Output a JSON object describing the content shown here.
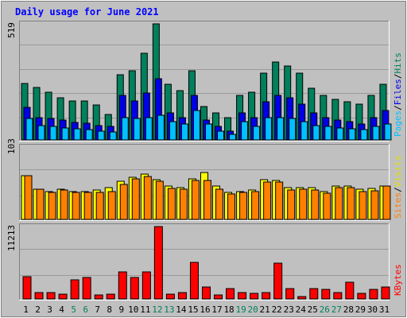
{
  "chart_data": [
    {
      "type": "bar",
      "title": "Daily usage for June 2021",
      "categories": [
        "1",
        "2",
        "3",
        "4",
        "5",
        "6",
        "7",
        "8",
        "9",
        "10",
        "11",
        "12",
        "13",
        "14",
        "15",
        "16",
        "17",
        "18",
        "19",
        "20",
        "21",
        "22",
        "23",
        "24",
        "25",
        "26",
        "27",
        "28",
        "29",
        "30",
        "31"
      ],
      "weekend_days": [
        "5",
        "6",
        "12",
        "13",
        "19",
        "20",
        "26",
        "27"
      ],
      "y_max_label": "519",
      "ylim": [
        0,
        519
      ],
      "grid": true,
      "series": [
        {
          "name": "Hits",
          "color": "#00805C",
          "values": [
            252,
            233,
            214,
            189,
            173,
            173,
            155,
            115,
            292,
            310,
            388,
            519,
            250,
            220,
            310,
            150,
            120,
            100,
            200,
            215,
            300,
            350,
            330,
            300,
            230,
            200,
            180,
            170,
            160,
            200,
            250
          ]
        },
        {
          "name": "Files",
          "color": "#0000E6",
          "values": [
            145,
            100,
            95,
            90,
            77,
            75,
            65,
            60,
            200,
            175,
            210,
            275,
            120,
            100,
            200,
            90,
            60,
            40,
            120,
            100,
            170,
            200,
            190,
            160,
            120,
            100,
            90,
            80,
            70,
            100,
            130
          ]
        },
        {
          "name": "Pages",
          "color": "#00C0FF",
          "values": [
            95,
            65,
            60,
            55,
            48,
            45,
            40,
            35,
            100,
            95,
            100,
            110,
            80,
            70,
            130,
            70,
            40,
            25,
            80,
            60,
            100,
            100,
            95,
            80,
            65,
            60,
            55,
            50,
            45,
            60,
            70
          ]
        }
      ]
    },
    {
      "type": "bar",
      "categories": [
        "1",
        "2",
        "3",
        "4",
        "5",
        "6",
        "7",
        "8",
        "9",
        "10",
        "11",
        "12",
        "13",
        "14",
        "15",
        "16",
        "17",
        "18",
        "19",
        "20",
        "21",
        "22",
        "23",
        "24",
        "25",
        "26",
        "27",
        "28",
        "29",
        "30",
        "31"
      ],
      "y_max_label": "103",
      "ylim": [
        0,
        103
      ],
      "grid": true,
      "series": [
        {
          "name": "Visits",
          "color": "#FFFF00",
          "values": [
            62,
            43,
            40,
            43,
            40,
            40,
            42,
            45,
            54,
            60,
            65,
            57,
            47,
            45,
            58,
            67,
            48,
            38,
            40,
            42,
            57,
            55,
            45,
            45,
            45,
            40,
            48,
            47,
            43,
            44,
            47
          ]
        },
        {
          "name": "Sites",
          "color": "#FF8000",
          "values": [
            62,
            43,
            39,
            42,
            38,
            38,
            39,
            40,
            50,
            58,
            61,
            54,
            44,
            43,
            56,
            56,
            43,
            36,
            38,
            40,
            53,
            53,
            42,
            43,
            42,
            37,
            45,
            45,
            40,
            41,
            47
          ]
        }
      ]
    },
    {
      "type": "bar",
      "categories": [
        "1",
        "2",
        "3",
        "4",
        "5",
        "6",
        "7",
        "8",
        "9",
        "10",
        "11",
        "12",
        "13",
        "14",
        "15",
        "16",
        "17",
        "18",
        "19",
        "20",
        "21",
        "22",
        "23",
        "24",
        "25",
        "26",
        "27",
        "28",
        "29",
        "30",
        "31"
      ],
      "y_max_label": "11213",
      "ylim": [
        0,
        11213
      ],
      "grid": true,
      "series": [
        {
          "name": "KBytes",
          "color": "#FF0000",
          "values": [
            3500,
            1000,
            1000,
            800,
            3000,
            3300,
            600,
            800,
            4200,
            3300,
            4200,
            11213,
            700,
            1000,
            5700,
            1900,
            600,
            1600,
            1000,
            900,
            1000,
            5500,
            1600,
            400,
            1600,
            1500,
            1000,
            2600,
            900,
            1500,
            1900
          ]
        }
      ]
    }
  ],
  "legends": {
    "top": {
      "hits": "Hits",
      "files": "Files",
      "pages": "Pages",
      "sep": "/"
    },
    "middle": {
      "visits": "Visits",
      "sites": "Sites",
      "sep": "/"
    },
    "bottom": {
      "kbytes": "KBytes"
    }
  },
  "colors": {
    "background": "#C0C0C0",
    "panel": "#C0C0C0",
    "title": "#0000FF",
    "weekday_tick": "#000000",
    "weekend_tick": "#00805C"
  }
}
